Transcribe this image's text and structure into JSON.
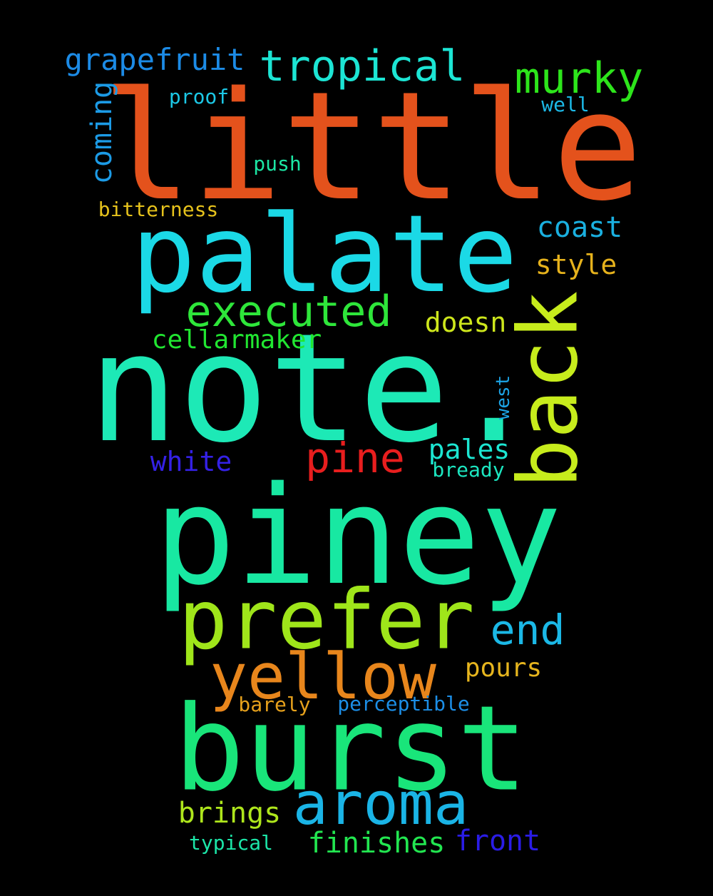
{
  "words": [
    {
      "text": "little",
      "color": "#e4521c"
    },
    {
      "text": "palate",
      "color": "#1bd9e6"
    },
    {
      "text": "note.",
      "color": "#1de9b6"
    },
    {
      "text": "piney",
      "color": "#18e8a2"
    },
    {
      "text": "burst",
      "color": "#19e57a"
    },
    {
      "text": "prefer",
      "color": "#9fe51a"
    },
    {
      "text": "back",
      "color": "#c7ec1c"
    },
    {
      "text": "yellow",
      "color": "#e8861c"
    },
    {
      "text": "aroma",
      "color": "#1ab4e6"
    },
    {
      "text": "tropical",
      "color": "#1ce5d4"
    },
    {
      "text": "murky",
      "color": "#2de51b"
    },
    {
      "text": "executed",
      "color": "#2ee63a"
    },
    {
      "text": "pine",
      "color": "#e81e1e"
    },
    {
      "text": "end",
      "color": "#1bb8e6"
    },
    {
      "text": "grapefruit",
      "color": "#1c8be6"
    },
    {
      "text": "coming",
      "color": "#1c9be6"
    },
    {
      "text": "coast",
      "color": "#1ab0e0"
    },
    {
      "text": "style",
      "color": "#e6b21c"
    },
    {
      "text": "doesn",
      "color": "#cde61c"
    },
    {
      "text": "cellarmaker",
      "color": "#21e631"
    },
    {
      "text": "white",
      "color": "#3421e6"
    },
    {
      "text": "pales",
      "color": "#1ce6d2"
    },
    {
      "text": "pours",
      "color": "#e6b51e"
    },
    {
      "text": "brings",
      "color": "#aee61c"
    },
    {
      "text": "finishes",
      "color": "#22e650"
    },
    {
      "text": "front",
      "color": "#2a1ce6"
    },
    {
      "text": "proof",
      "color": "#1cc8e6"
    },
    {
      "text": "well",
      "color": "#1cb8e6"
    },
    {
      "text": "push",
      "color": "#1ce6a4"
    },
    {
      "text": "bitterness",
      "color": "#e6c21c"
    },
    {
      "text": "west",
      "color": "#1ca4e6"
    },
    {
      "text": "bready",
      "color": "#1ce6c0"
    },
    {
      "text": "barely",
      "color": "#e6a11c"
    },
    {
      "text": "perceptible",
      "color": "#1c8ee6"
    },
    {
      "text": "typical",
      "color": "#1ce6a8"
    }
  ]
}
